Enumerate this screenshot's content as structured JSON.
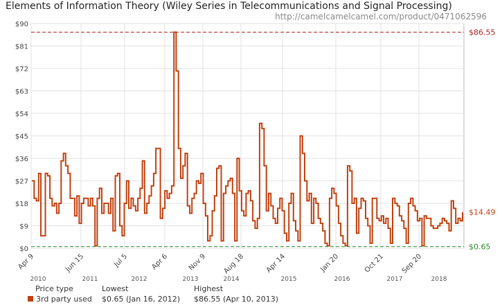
{
  "header": {
    "title": "Elements of Information Theory (Wiley Series in Telecommunications and Signal Processing)",
    "url": "http://camelcamelcamel.com/product/0471062596"
  },
  "chart_data": {
    "type": "line",
    "title": "Elements of Information Theory (Wiley Series in Telecommunications and Signal Processing)",
    "xlabel": "",
    "ylabel": "",
    "ylim": [
      0,
      90
    ],
    "yticks": [
      "$0",
      "$9",
      "$18",
      "$27",
      "$36",
      "$45",
      "$54",
      "$63",
      "$72",
      "$81",
      "$90"
    ],
    "xtick_labels": [
      "Apr 9",
      "Jun 15",
      "Jul 5",
      "Apr 6",
      "Nov 9",
      "Aug 18",
      "Apr 14",
      "Jan 20",
      "Oct 21",
      "Sep 20"
    ],
    "year_labels": [
      "2010",
      "2011",
      "2012",
      "2013",
      "2014",
      "2015",
      "2016",
      "2017",
      "2018"
    ],
    "grid": true,
    "highest_line": {
      "value": 86.55,
      "label": "$86.55"
    },
    "lowest_line": {
      "value": 0.65,
      "label": "$0.65"
    },
    "current": {
      "value": 14.49,
      "label": "$14.49"
    },
    "series": [
      {
        "name": "3rd party used",
        "color": "#c0410f",
        "x_start": "2010-04",
        "x_end": "2018-10",
        "values": [
          27,
          20,
          19,
          30,
          5,
          5,
          30,
          29,
          20,
          17,
          18,
          14,
          18,
          35,
          38,
          33,
          30,
          20,
          20,
          13,
          21,
          10,
          18,
          20,
          20,
          17,
          20,
          17,
          1,
          20,
          24,
          14,
          18,
          18,
          14,
          20,
          7,
          29,
          30,
          9,
          5,
          18,
          27,
          16,
          20,
          17,
          15,
          20,
          24,
          35,
          14,
          18,
          21,
          25,
          30,
          40,
          40,
          12,
          16,
          23,
          20,
          22,
          25,
          86.55,
          71,
          40,
          28,
          33,
          38,
          17,
          14,
          20,
          22,
          27,
          26,
          30,
          18,
          13,
          3,
          5,
          15,
          21,
          32,
          33,
          3,
          22,
          25,
          27,
          28,
          22,
          3,
          36,
          23,
          15,
          13,
          22,
          23,
          19,
          11,
          8,
          12,
          50,
          48,
          33,
          15,
          22,
          17,
          12,
          10,
          16,
          20,
          15,
          6,
          3,
          18,
          22,
          11,
          7,
          3,
          45,
          38,
          27,
          19,
          22,
          10,
          20,
          18,
          12,
          10,
          7,
          2,
          1,
          20,
          24,
          22,
          17,
          10,
          5,
          2,
          1,
          33,
          31,
          18,
          20,
          6,
          16,
          20,
          19,
          12,
          9,
          2,
          20,
          20,
          12,
          11,
          13,
          10,
          12,
          8,
          2,
          20,
          18,
          17,
          13,
          11,
          8,
          2,
          18,
          20,
          17,
          15,
          11,
          12,
          1,
          13,
          12,
          12,
          9,
          8,
          8,
          9,
          10,
          12,
          11,
          10,
          7,
          19,
          16,
          10,
          12,
          11,
          14.49
        ]
      }
    ]
  },
  "summary": {
    "header": {
      "type": "Price type",
      "lowest": "Lowest",
      "highest": "Highest"
    },
    "row": {
      "type": "3rd party used",
      "lowest": "$0.65 (Jan 16, 2012)",
      "highest": "$86.55 (Apr 10, 2013)"
    }
  }
}
